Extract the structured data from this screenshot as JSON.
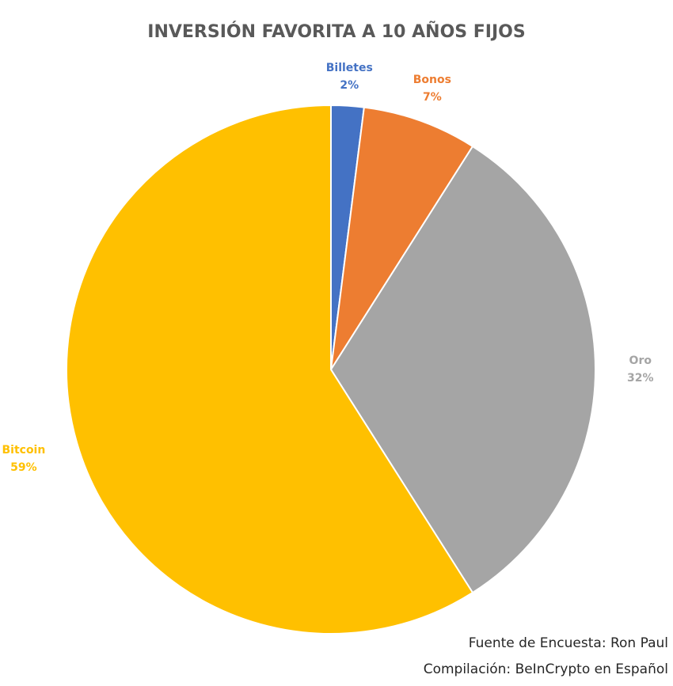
{
  "chart_data": {
    "type": "pie",
    "title": "INVERSIÓN FAVORITA A 10 AÑOS FIJOS",
    "categories": [
      "Billetes",
      "Bonos",
      "Oro",
      "Bitcoin"
    ],
    "values": [
      2,
      7,
      32,
      59
    ],
    "labels": [
      "2%",
      "7%",
      "32%",
      "59%"
    ],
    "colors": [
      "#4472C4",
      "#ED7D31",
      "#A5A5A5",
      "#FFC000"
    ],
    "label_colors": [
      "#4472C4",
      "#ED7D31",
      "#A5A5A5",
      "#FFC000"
    ],
    "start_angle": "12 o'clock",
    "direction": "clockwise",
    "legend": "none"
  },
  "footer": {
    "source": "Fuente de Encuesta: Ron Paul",
    "compilation": "Compilación: BeInCrypto en Español"
  }
}
